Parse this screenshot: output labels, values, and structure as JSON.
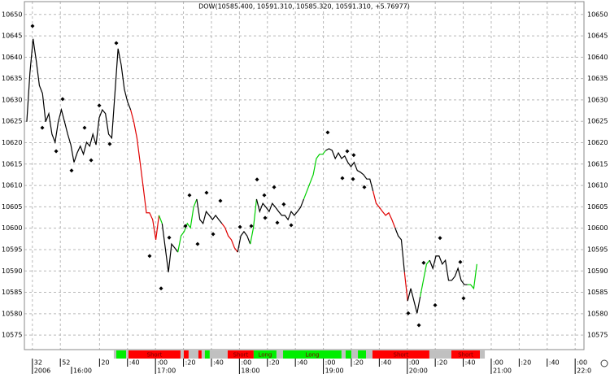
{
  "chart_data": {
    "type": "line",
    "title": "DOW(10585.400, 10591.310, 10585.320, 10591.310, +5.76977)",
    "x": [
      28,
      30.25,
      32.5,
      34.75,
      37,
      39.25,
      41.5,
      43.75,
      46,
      48.25,
      50.5,
      52.75,
      55,
      57.25,
      59.5,
      61.75,
      64,
      66.25,
      68.5,
      70.75,
      73,
      75.25,
      77.5,
      79.75,
      82,
      84.25,
      86.5,
      88.75,
      91,
      93.25,
      95.5,
      97.75,
      100,
      102.25,
      104.5,
      106.75,
      109,
      111.25,
      113.5,
      115.75,
      118,
      120.25,
      122.5,
      124.75,
      127,
      129.25,
      131.5,
      133.75,
      136,
      138.25,
      140.5,
      142.75,
      145,
      147.25,
      149.5,
      151.75,
      154,
      156.25,
      158.5,
      160.75,
      163,
      165.25,
      167.5,
      169.75,
      172,
      174.25,
      176.5,
      178.75,
      181,
      183.25,
      185.5,
      187.75,
      190,
      192.25,
      194.5,
      196.75,
      199,
      201.25,
      203.5,
      205.75,
      208,
      210.25,
      212.5,
      214.75,
      217,
      219.25,
      221.5,
      223.75,
      226,
      228.25,
      230.5,
      232.75,
      235,
      237.25,
      239.5,
      241.75,
      244,
      246.25,
      248.5,
      250.75,
      253,
      255.25,
      257.5,
      259.75,
      262,
      264.25,
      266.5,
      268.75,
      271,
      273.25,
      275.5,
      277.75,
      280,
      282.25,
      284.5,
      286.75,
      289,
      291.25,
      293.5,
      295.75,
      298,
      300.25,
      302.5,
      304.75,
      307,
      309.25,
      311.5,
      313.75,
      316,
      318.25,
      320.5,
      322.75,
      325,
      327.25,
      329.5,
      331.75,
      334,
      336.25,
      338.5,
      340.75,
      343,
      345.25,
      347.5,
      349.75
    ],
    "values": [
      10624.9,
      10636.3,
      10644.3,
      10639.2,
      10633.4,
      10631.5,
      10624.9,
      10626.8,
      10622.0,
      10620.1,
      10624.9,
      10627.7,
      10624.9,
      10622.0,
      10619.5,
      10615.4,
      10617.6,
      10619.2,
      10617.3,
      10620.1,
      10619.2,
      10622.0,
      10619.5,
      10625.8,
      10627.7,
      10626.8,
      10622.0,
      10621.1,
      10631.5,
      10642.0,
      10638.2,
      10632.5,
      10629.6,
      10627.7,
      10624.9,
      10621.1,
      10615.4,
      10609.6,
      10603.6,
      10603.6,
      10602.0,
      10597.3,
      10603.0,
      10601.1,
      10595.4,
      10589.7,
      10596.3,
      10595.4,
      10594.4,
      10598.2,
      10599.2,
      10601.1,
      10600.1,
      10604.9,
      10606.8,
      10602.0,
      10601.1,
      10603.9,
      10603.0,
      10602.0,
      10603.0,
      10602.0,
      10601.1,
      10600.1,
      10598.2,
      10597.3,
      10595.4,
      10594.4,
      10598.2,
      10599.2,
      10598.2,
      10596.3,
      10600.1,
      10606.8,
      10603.9,
      10605.8,
      10604.9,
      10603.9,
      10605.8,
      10604.9,
      10603.9,
      10603.0,
      10603.0,
      10602.0,
      10603.9,
      10603.0,
      10603.9,
      10604.9,
      10606.8,
      10608.7,
      10610.6,
      10612.5,
      10616.3,
      10617.3,
      10617.3,
      10618.2,
      10618.6,
      10618.2,
      10616.3,
      10617.6,
      10616.3,
      10616.9,
      10615.4,
      10614.4,
      10615.4,
      10613.5,
      10613.1,
      10612.5,
      10611.5,
      10611.5,
      10608.7,
      10605.8,
      10604.9,
      10603.9,
      10603.0,
      10603.6,
      10602.0,
      10600.1,
      10598.2,
      10597.3,
      10589.7,
      10583.0,
      10585.9,
      10583.0,
      10580.1,
      10584.0,
      10587.8,
      10591.6,
      10592.5,
      10590.6,
      10593.5,
      10593.5,
      10591.6,
      10592.5,
      10587.8,
      10587.8,
      10588.7,
      10590.6,
      10587.8,
      10586.8,
      10586.8,
      10586.8,
      10585.9,
      10591.6
    ],
    "point_colors": [
      "#000",
      "#000",
      "#000",
      "#000",
      "#000",
      "#000",
      "#000",
      "#000",
      "#000",
      "#000",
      "#000",
      "#000",
      "#000",
      "#000",
      "#000",
      "#000",
      "#000",
      "#000",
      "#000",
      "#000",
      "#000",
      "#000",
      "#000",
      "#000",
      "#000",
      "#000",
      "#000",
      "#000",
      "#000",
      "#000",
      "#000",
      "#000",
      "#000",
      "#000",
      "#e00000",
      "#e00000",
      "#e00000",
      "#e00000",
      "#e00000",
      "#e00000",
      "#e00000",
      "#e00000",
      "#e00000",
      "#00d000",
      "#000",
      "#000",
      "#000",
      "#000",
      "#000",
      "#00d000",
      "#00d000",
      "#00d000",
      "#00d000",
      "#00d000",
      "#00d000",
      "#000",
      "#000",
      "#000",
      "#000",
      "#000",
      "#000",
      "#000",
      "#000",
      "#e00000",
      "#e00000",
      "#e00000",
      "#e00000",
      "#e00000",
      "#000",
      "#000",
      "#000",
      "#000",
      "#00d000",
      "#00d000",
      "#000",
      "#000",
      "#000",
      "#000",
      "#000",
      "#000",
      "#000",
      "#000",
      "#000",
      "#000",
      "#000",
      "#000",
      "#000",
      "#000",
      "#000",
      "#00d000",
      "#00d000",
      "#00d000",
      "#00d000",
      "#00d000",
      "#00d000",
      "#00d000",
      "#000",
      "#000",
      "#000",
      "#000",
      "#000",
      "#000",
      "#000",
      "#000",
      "#000",
      "#000",
      "#000",
      "#000",
      "#000",
      "#000",
      "#000",
      "#e00000",
      "#e00000",
      "#e00000",
      "#e00000",
      "#e00000",
      "#e00000",
      "#e00000",
      "#000",
      "#000",
      "#000",
      "#e00000",
      "#000",
      "#000",
      "#000",
      "#000",
      "#00d000",
      "#00d000",
      "#00d000",
      "#000",
      "#000",
      "#000",
      "#000",
      "#000",
      "#000",
      "#000",
      "#000",
      "#000",
      "#000",
      "#000",
      "#000",
      "#00d000",
      "#00d000",
      "#00d000"
    ],
    "markers": {
      "type": "scatter",
      "color": "#000",
      "x": [
        32.1,
        39.1,
        49.0,
        53.6,
        60,
        69.3,
        74.0,
        79.8,
        87.3,
        92.0,
        115.8,
        124.0,
        129.8,
        141.4,
        144.3,
        150.1,
        156.5,
        161.2,
        166.4,
        180.4,
        188.5,
        192.6,
        197.8,
        198.4,
        204.8,
        207.1,
        211.7,
        217.0,
        243.1,
        253.6,
        257.1,
        261.2,
        261.7,
        269.3,
        300.7,
        308.3,
        311.7,
        319.9,
        323.4,
        337.9,
        340.2
      ],
      "values": [
        10647.3,
        10623.5,
        10618.0,
        10630.2,
        10613.5,
        10623.5,
        10615.9,
        10628.7,
        10619.7,
        10643.3,
        10593.5,
        10585.9,
        10597.8,
        10600.5,
        10607.7,
        10596.3,
        10608.3,
        10598.6,
        10606.4,
        10600.3,
        10600.5,
        10611.4,
        10607.7,
        10602.4,
        10609.6,
        10601.3,
        10605.6,
        10600.7,
        10622.4,
        10611.7,
        10618.0,
        10611.5,
        10617.1,
        10609.6,
        10580.1,
        10577.3,
        10591.9,
        10582.0,
        10597.7,
        10592.1,
        10583.6
      ]
    },
    "xlim": [
      26.3,
      426.3
    ],
    "xticks": [
      32,
      52,
      {
        "value": 80,
        "label": "20"
      },
      {
        "value": 100,
        "label": ":40"
      },
      {
        "value": 120,
        "label": ":00"
      },
      {
        "value": 140,
        "label": ":20"
      },
      {
        "value": 160,
        "label": ":40"
      },
      {
        "value": 180,
        "label": ":00"
      },
      {
        "value": 200,
        "label": ":20"
      },
      {
        "value": 220,
        "label": ":40"
      },
      {
        "value": 240,
        "label": ":00"
      },
      {
        "value": 260,
        "label": ":20"
      },
      {
        "value": 280,
        "label": ":40"
      },
      {
        "value": 300,
        "label": ":00"
      },
      {
        "value": 320,
        "label": ":20"
      },
      {
        "value": 340,
        "label": ":40"
      },
      {
        "value": 360,
        "label": ":00"
      },
      {
        "value": 380,
        "label": ":20"
      },
      {
        "value": 400,
        "label": ":40"
      },
      {
        "value": 420,
        "label": ":00"
      }
    ],
    "x_major_ticks": [
      {
        "value": 32,
        "label": "2006"
      },
      {
        "value": 60,
        "label": "16:00"
      },
      {
        "value": 120,
        "label": "17:00"
      },
      {
        "value": 180,
        "label": "18:00"
      },
      {
        "value": 240,
        "label": "19:00"
      },
      {
        "value": 300,
        "label": "20:00"
      },
      {
        "value": 360,
        "label": "21:00"
      },
      {
        "value": 420,
        "label": "22:0"
      }
    ],
    "ylim": [
      10571.6,
      10653
    ],
    "yticks": [
      10575,
      10580,
      10585,
      10590,
      10595,
      10600,
      10605,
      10610,
      10615,
      10620,
      10625,
      10630,
      10635,
      10640,
      10645,
      10650
    ],
    "grid": true,
    "signals": [
      {
        "start": 90.2,
        "end": 92,
        "color": "#c0c0c0"
      },
      {
        "start": 92,
        "end": 99,
        "color": "#00ee00"
      },
      {
        "start": 99,
        "end": 100.7,
        "color": "#c0c0c0"
      },
      {
        "start": 100.7,
        "end": 137.9,
        "color": "#ff0000",
        "label": "Short"
      },
      {
        "start": 137.9,
        "end": 140.2,
        "color": "#c0c0c0"
      },
      {
        "start": 140.2,
        "end": 143.7,
        "color": "#ff0000"
      },
      {
        "start": 143.7,
        "end": 150.7,
        "color": "#c0c0c0"
      },
      {
        "start": 150.7,
        "end": 153,
        "color": "#ff0000"
      },
      {
        "start": 153,
        "end": 155.3,
        "color": "#c0c0c0"
      },
      {
        "start": 155.3,
        "end": 158.8,
        "color": "#00ee00"
      },
      {
        "start": 158.8,
        "end": 171.6,
        "color": "#c0c0c0"
      },
      {
        "start": 171.6,
        "end": 190.2,
        "color": "#ff0000",
        "label": "Short"
      },
      {
        "start": 190.2,
        "end": 206.5,
        "color": "#00ee00",
        "label": "Long"
      },
      {
        "start": 206.5,
        "end": 211.2,
        "color": "#c0c0c0"
      },
      {
        "start": 211.2,
        "end": 253,
        "color": "#00ee00",
        "label": "Long"
      },
      {
        "start": 253,
        "end": 255.9,
        "color": "#c0c0c0"
      },
      {
        "start": 255.9,
        "end": 260,
        "color": "#00ee00"
      },
      {
        "start": 260,
        "end": 264.7,
        "color": "#c0c0c0"
      },
      {
        "start": 264.7,
        "end": 270.5,
        "color": "#00ee00"
      },
      {
        "start": 270.5,
        "end": 275.1,
        "color": "#c0c0c0"
      },
      {
        "start": 275.1,
        "end": 315.8,
        "color": "#ff0000",
        "label": "Short"
      },
      {
        "start": 315.8,
        "end": 331.5,
        "color": "#c0c0c0"
      },
      {
        "start": 331.5,
        "end": 351.9,
        "color": "#ff0000",
        "label": "Short"
      },
      {
        "start": 351.9,
        "end": 355.4,
        "color": "#c0c0c0"
      }
    ]
  }
}
